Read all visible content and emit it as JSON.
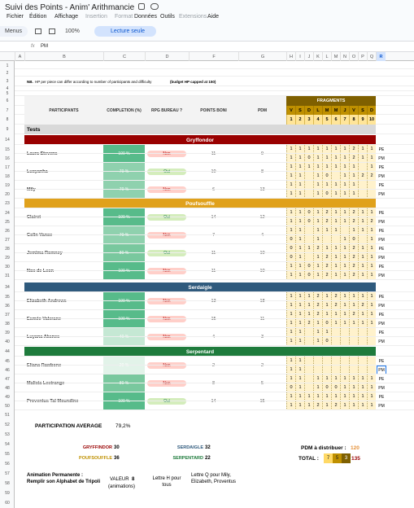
{
  "app": {
    "title": "Suivi des Points - Anim' Arithmancie",
    "menus": [
      "Fichier",
      "Édition",
      "Affichage",
      "Insertion",
      "Format",
      "Données",
      "Outils",
      "Extensions",
      "Aide"
    ],
    "toolbar": {
      "menus": "Menus",
      "zoom": "100%",
      "mode": "Lecture seule"
    },
    "formula_bar": {
      "fx": "fx",
      "content": "PM"
    }
  },
  "sheet": {
    "columns": [
      "A",
      "B",
      "C",
      "D",
      "F",
      "G",
      "H",
      "I",
      "J",
      "K",
      "L",
      "M",
      "N",
      "O",
      "P",
      "Q",
      "R"
    ],
    "row_numbers": [
      1,
      2,
      3,
      4,
      5,
      6,
      7,
      8,
      9,
      14,
      15,
      16,
      17,
      18,
      19,
      20,
      23,
      24,
      25,
      26,
      27,
      28,
      29,
      30,
      31,
      34,
      35,
      36,
      37,
      38,
      39,
      40,
      44,
      45,
      46,
      47,
      48,
      49,
      50,
      51,
      52,
      53,
      54,
      55,
      56,
      57,
      58,
      59,
      60
    ],
    "note_prefix": "NB.",
    "note": "HP per piece can differ according to number of participants and difficulty",
    "note_bold": "(budget HP capped at 150)",
    "headers": {
      "participants": "PARTICIPANTS",
      "completion": "COMPLETION (%)",
      "rpg": "RPG BUREAU ?",
      "points": "POINTS BONI",
      "pdm": "PDM",
      "fragments": "FRAGMENTS",
      "days": [
        "V",
        "S",
        "D",
        "L",
        "M",
        "M",
        "J",
        "V",
        "S",
        "D"
      ],
      "numbers": [
        1,
        2,
        3,
        4,
        5,
        6,
        7,
        8,
        9,
        10
      ]
    },
    "section": "Tests",
    "houses": [
      {
        "name": "Gryffondor",
        "color": "#990000",
        "students": [
          {
            "name": "Laura Stevens",
            "completion": "100 %",
            "rpg": "Non",
            "points": 11,
            "pdm": 9,
            "fragments": [
              {
                "values": [
                  1,
                  1,
                  1,
                  1,
                  1,
                  1,
                  1,
                  2,
                  1,
                  1
                ],
                "label": "PE"
              },
              {
                "values": [
                  1,
                  1,
                  0,
                  1,
                  1,
                  1,
                  1,
                  2,
                  1,
                  1
                ],
                "label": "PM"
              }
            ]
          },
          {
            "name": "Lucyanha",
            "completion": "70 %",
            "rpg": "Oui",
            "points": 10,
            "pdm": 8,
            "fragments": [
              {
                "values": [
                  1,
                  1,
                  1,
                  1,
                  1,
                  1,
                  1,
                  1,
                  null,
                  1
                ],
                "label": "PE"
              },
              {
                "values": [
                  1,
                  1,
                  null,
                  1,
                  0,
                  null,
                  1,
                  1,
                  2,
                  2
                ],
                "label": "PM"
              }
            ]
          },
          {
            "name": "Mily",
            "completion": "70 %",
            "rpg": "Non",
            "points": 6,
            "pdm": 13,
            "fragments": [
              {
                "values": [
                  1,
                  1,
                  null,
                  1,
                  1,
                  1,
                  1,
                  1,
                  null,
                  null
                ],
                "label": "PE"
              },
              {
                "values": [
                  1,
                  1,
                  null,
                  1,
                  0,
                  1,
                  1,
                  1,
                  null,
                  null
                ],
                "label": "PM"
              }
            ]
          }
        ]
      },
      {
        "name": "Poufsouffle",
        "color": "#e0a11b",
        "students": [
          {
            "name": "Clairet",
            "completion": "100 %",
            "rpg": "Oui",
            "points": 14,
            "pdm": 12,
            "fragments": [
              {
                "values": [
                  1,
                  1,
                  0,
                  1,
                  2,
                  1,
                  1,
                  2,
                  1,
                  1
                ],
                "label": "PE"
              },
              {
                "values": [
                  1,
                  1,
                  0,
                  1,
                  2,
                  1,
                  1,
                  2,
                  1,
                  2
                ],
                "label": "PM"
              }
            ]
          },
          {
            "name": "Colin Vance",
            "completion": "70 %",
            "rpg": "Non",
            "points": 7,
            "pdm": 4,
            "fragments": [
              {
                "values": [
                  1,
                  1,
                  null,
                  1,
                  1,
                  1,
                  null,
                  1,
                  1,
                  1
                ],
                "label": "PE"
              },
              {
                "values": [
                  0,
                  1,
                  null,
                  1,
                  null,
                  null,
                  1,
                  0,
                  null,
                  1
                ],
                "label": "PM"
              }
            ]
          },
          {
            "name": "Jemima Romney",
            "completion": "80 %",
            "rpg": "Oui",
            "points": 11,
            "pdm": 10,
            "fragments": [
              {
                "values": [
                  0,
                  1,
                  1,
                  2,
                  1,
                  1,
                  1,
                  2,
                  1,
                  1
                ],
                "label": "PE"
              },
              {
                "values": [
                  0,
                  1,
                  null,
                  1,
                  2,
                  1,
                  1,
                  2,
                  1,
                  1
                ],
                "label": "PM"
              }
            ]
          },
          {
            "name": "Nox de Leon",
            "completion": "100 %",
            "rpg": "Non",
            "points": 11,
            "pdm": 10,
            "fragments": [
              {
                "values": [
                  1,
                  1,
                  0,
                  1,
                  2,
                  1,
                  1,
                  2,
                  1,
                  1
                ],
                "label": "PE"
              },
              {
                "values": [
                  1,
                  1,
                  0,
                  1,
                  2,
                  1,
                  1,
                  2,
                  1,
                  1
                ],
                "label": "PM"
              }
            ]
          }
        ]
      },
      {
        "name": "Serdaigle",
        "color": "#2f5a7d",
        "students": [
          {
            "name": "Elizabeth Andrews",
            "completion": "100 %",
            "rpg": "Non",
            "points": 13,
            "pdm": 18,
            "fragments": [
              {
                "values": [
                  1,
                  1,
                  1,
                  2,
                  1,
                  2,
                  1,
                  1,
                  1,
                  1
                ],
                "label": "PE"
              },
              {
                "values": [
                  1,
                  1,
                  1,
                  2,
                  1,
                  2,
                  1,
                  1,
                  2,
                  1
                ],
                "label": "PM"
              }
            ]
          },
          {
            "name": "Esmée Valerane",
            "completion": "100 %",
            "rpg": "Non",
            "points": 15,
            "pdm": 11,
            "fragments": [
              {
                "values": [
                  1,
                  1,
                  1,
                  2,
                  1,
                  1,
                  1,
                  2,
                  1,
                  1
                ],
                "label": "PE"
              },
              {
                "values": [
                  1,
                  1,
                  2,
                  1,
                  0,
                  1,
                  1,
                  1,
                  1,
                  1
                ],
                "label": "PM"
              }
            ]
          },
          {
            "name": "Luyana Aksnes",
            "completion": "40 %",
            "rpg": "Non",
            "points": 4,
            "pdm": 3,
            "fragments": [
              {
                "values": [
                  1,
                  1,
                  null,
                  1,
                  1,
                  null,
                  null,
                  null,
                  null,
                  null
                ],
                "label": "PE"
              },
              {
                "values": [
                  1,
                  1,
                  null,
                  1,
                  0,
                  null,
                  null,
                  null,
                  null,
                  null
                ],
                "label": "PM"
              }
            ]
          }
        ]
      },
      {
        "name": "Serpentard",
        "color": "#1e7b3c",
        "students": [
          {
            "name": "Eliana Rawbone",
            "completion": "20 %",
            "rpg": "Non",
            "points": 2,
            "pdm": 2,
            "fragments": [
              {
                "values": [
                  1,
                  1,
                  null,
                  null,
                  null,
                  null,
                  null,
                  null,
                  null,
                  null
                ],
                "label": "PE"
              },
              {
                "values": [
                  1,
                  1,
                  null,
                  null,
                  null,
                  null,
                  null,
                  null,
                  null,
                  null
                ],
                "label": "PM"
              }
            ]
          },
          {
            "name": "Malicia Lestrange",
            "completion": "80 %",
            "rpg": "Non",
            "points": 8,
            "pdm": 5,
            "fragments": [
              {
                "values": [
                  1,
                  1,
                  null,
                  1,
                  1,
                  1,
                  1,
                  1,
                  1,
                  1
                ],
                "label": "PE"
              },
              {
                "values": [
                  0,
                  1,
                  null,
                  1,
                  0,
                  0,
                  1,
                  1,
                  1,
                  1
                ],
                "label": "PM"
              }
            ]
          },
          {
            "name": "Proventus Tal Moundine",
            "completion": "100 %",
            "rpg": "Oui",
            "points": 14,
            "pdm": 15,
            "fragments": [
              {
                "values": [
                  1,
                  1,
                  1,
                  1,
                  1,
                  1,
                  1,
                  1,
                  1,
                  1
                ],
                "label": "PE"
              },
              {
                "values": [
                  1,
                  1,
                  1,
                  2,
                  1,
                  2,
                  1,
                  1,
                  1,
                  1
                ],
                "label": "PM"
              }
            ]
          }
        ]
      }
    ],
    "summary": {
      "participation_label": "PARTICIPATION AVERAGE",
      "participation_value": "79,2%",
      "house_totals": [
        {
          "name": "GRYFFINDOR",
          "value": 30,
          "color": "#990000"
        },
        {
          "name": "SERDAIGLE",
          "value": 32,
          "color": "#2f5a7d"
        },
        {
          "name": "POUFSOUFFLE",
          "value": 36,
          "color": "#bf9000"
        },
        {
          "name": "SERPENTARD",
          "value": 22,
          "color": "#1e7b3c"
        }
      ],
      "pdm_label": "PDM à distribuer :",
      "pdm_value": 120,
      "total_label": "TOTAL :",
      "total_parts": [
        7,
        5,
        3
      ],
      "total_colors": [
        "#ffd966",
        "#bf9000",
        "#7f6000"
      ],
      "total": 135,
      "animation": {
        "title": "Animation Permanente : Remplir son Alphabet de Tripoli",
        "value_label": "VALEUR",
        "value": 8,
        "value_note": "(animations)",
        "letter_h": "Lettre H pour tous",
        "letter_q": "Lettre Q pour Mily, Elizabeth, Proventus"
      }
    }
  }
}
